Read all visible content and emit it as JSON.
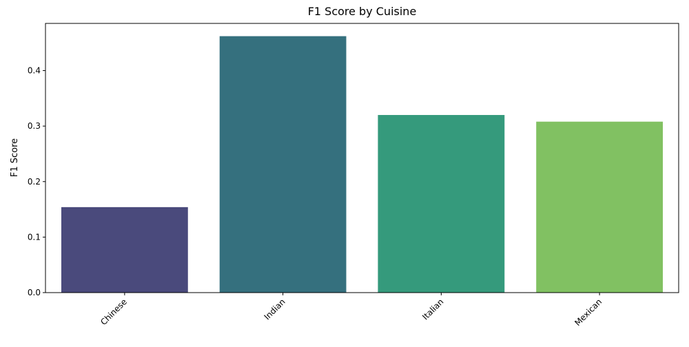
{
  "chart_data": {
    "type": "bar",
    "title": "F1 Score by Cuisine",
    "xlabel": "",
    "ylabel": "F1 Score",
    "categories": [
      "Chinese",
      "Indian",
      "Italian",
      "Mexican"
    ],
    "values": [
      0.154,
      0.462,
      0.32,
      0.308
    ],
    "colors": [
      "#4a4a7c",
      "#35707e",
      "#359a7c",
      "#81c162"
    ],
    "ylim": [
      0,
      0.485
    ],
    "yticks": [
      0.0,
      0.1,
      0.2,
      0.3,
      0.4
    ],
    "ytick_labels": [
      "0.0",
      "0.1",
      "0.2",
      "0.3",
      "0.4"
    ],
    "grid": false,
    "legend": "none"
  }
}
